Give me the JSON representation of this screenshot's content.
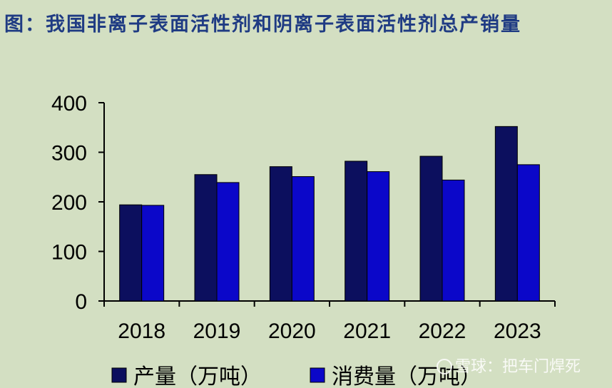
{
  "title": "图：我国非离子表面活性剂和阴离子表面活性剂总产销量",
  "watermark": "雪球：把车门焊死",
  "colors": {
    "background": "#d3dfc2",
    "title": "#1f3b83",
    "production": "#0c0f5e",
    "consumption": "#0b07c9"
  },
  "chart_data": {
    "type": "bar",
    "categories": [
      "2018",
      "2019",
      "2020",
      "2021",
      "2022",
      "2023"
    ],
    "series": [
      {
        "name": "产量（万吨）",
        "values": [
          194,
          255,
          271,
          282,
          292,
          352
        ]
      },
      {
        "name": "消费量（万吨）",
        "values": [
          193,
          239,
          251,
          261,
          244,
          275
        ]
      }
    ],
    "yticks": [
      "0",
      "100",
      "200",
      "300",
      "400"
    ],
    "ylim": [
      0,
      400
    ],
    "grid": false,
    "legend_position": "bottom"
  }
}
